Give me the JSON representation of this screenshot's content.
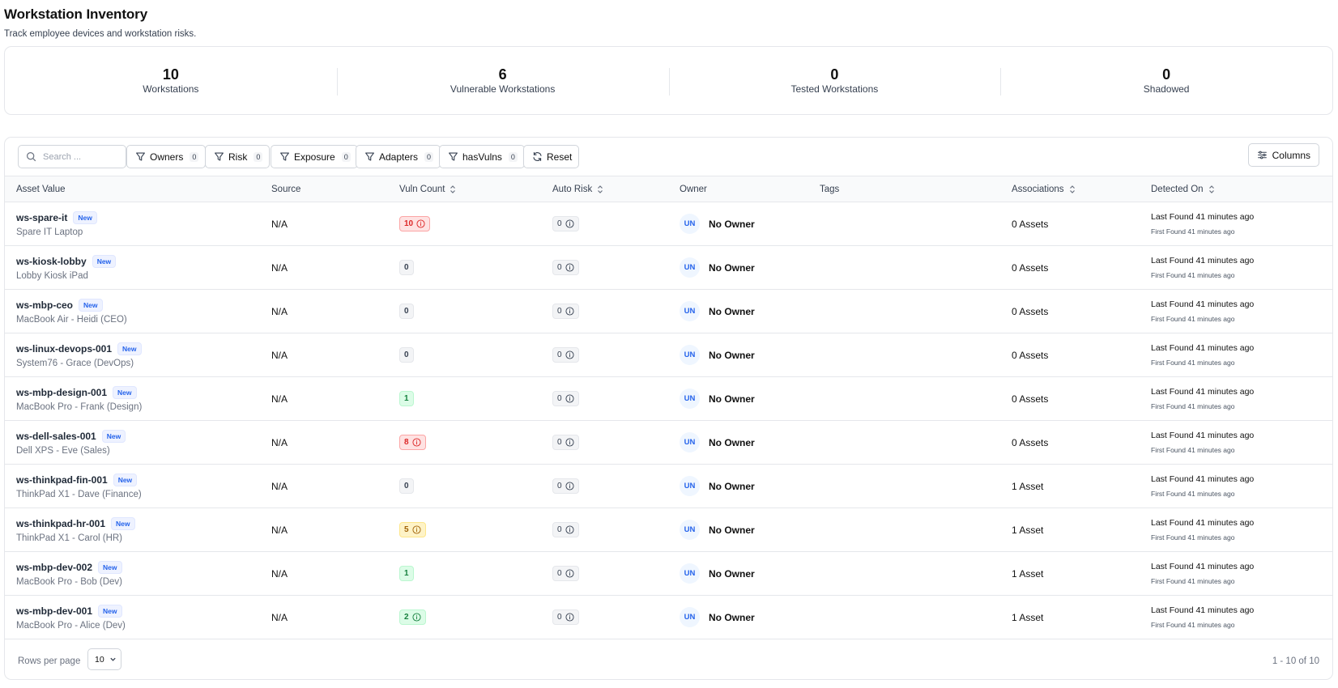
{
  "header": {
    "title": "Workstation Inventory",
    "subtitle": "Track employee devices and workstation risks."
  },
  "stats": [
    {
      "value": "10",
      "label": "Workstations"
    },
    {
      "value": "6",
      "label": "Vulnerable Workstations"
    },
    {
      "value": "0",
      "label": "Tested Workstations"
    },
    {
      "value": "0",
      "label": "Shadowed"
    }
  ],
  "toolbar": {
    "search_placeholder": "Search ...",
    "filters": [
      {
        "label": "Owners",
        "count": "0"
      },
      {
        "label": "Risk",
        "count": "0"
      },
      {
        "label": "Exposure",
        "count": "0"
      },
      {
        "label": "Adapters",
        "count": "0"
      },
      {
        "label": "hasVulns",
        "count": "0"
      }
    ],
    "reset_label": "Reset",
    "columns_label": "Columns"
  },
  "table": {
    "columns": {
      "asset_value": "Asset Value",
      "source": "Source",
      "vuln_count": "Vuln Count",
      "auto_risk": "Auto Risk",
      "owner": "Owner",
      "tags": "Tags",
      "associations": "Associations",
      "detected_on": "Detected On"
    },
    "rows": [
      {
        "name": "ws-spare-it",
        "badge": "New",
        "desc": "Spare IT Laptop",
        "source": "N/A",
        "vuln": "10",
        "vuln_level": "red",
        "vuln_info": true,
        "risk": "0",
        "owner_initials": "UN",
        "owner": "No Owner",
        "assoc": "0 Assets",
        "last": "Last Found 41 minutes ago",
        "first": "First Found 41 minutes ago"
      },
      {
        "name": "ws-kiosk-lobby",
        "badge": "New",
        "desc": "Lobby Kiosk iPad",
        "source": "N/A",
        "vuln": "0",
        "vuln_level": "gray",
        "vuln_info": false,
        "risk": "0",
        "owner_initials": "UN",
        "owner": "No Owner",
        "assoc": "0 Assets",
        "last": "Last Found 41 minutes ago",
        "first": "First Found 41 minutes ago"
      },
      {
        "name": "ws-mbp-ceo",
        "badge": "New",
        "desc": "MacBook Air - Heidi (CEO)",
        "source": "N/A",
        "vuln": "0",
        "vuln_level": "gray",
        "vuln_info": false,
        "risk": "0",
        "owner_initials": "UN",
        "owner": "No Owner",
        "assoc": "0 Assets",
        "last": "Last Found 41 minutes ago",
        "first": "First Found 41 minutes ago"
      },
      {
        "name": "ws-linux-devops-001",
        "badge": "New",
        "desc": "System76 - Grace (DevOps)",
        "source": "N/A",
        "vuln": "0",
        "vuln_level": "gray",
        "vuln_info": false,
        "risk": "0",
        "owner_initials": "UN",
        "owner": "No Owner",
        "assoc": "0 Assets",
        "last": "Last Found 41 minutes ago",
        "first": "First Found 41 minutes ago"
      },
      {
        "name": "ws-mbp-design-001",
        "badge": "New",
        "desc": "MacBook Pro - Frank (Design)",
        "source": "N/A",
        "vuln": "1",
        "vuln_level": "green",
        "vuln_info": false,
        "risk": "0",
        "owner_initials": "UN",
        "owner": "No Owner",
        "assoc": "0 Assets",
        "last": "Last Found 41 minutes ago",
        "first": "First Found 41 minutes ago"
      },
      {
        "name": "ws-dell-sales-001",
        "badge": "New",
        "desc": "Dell XPS - Eve (Sales)",
        "source": "N/A",
        "vuln": "8",
        "vuln_level": "red",
        "vuln_info": true,
        "risk": "0",
        "owner_initials": "UN",
        "owner": "No Owner",
        "assoc": "0 Assets",
        "last": "Last Found 41 minutes ago",
        "first": "First Found 41 minutes ago"
      },
      {
        "name": "ws-thinkpad-fin-001",
        "badge": "New",
        "desc": "ThinkPad X1 - Dave (Finance)",
        "source": "N/A",
        "vuln": "0",
        "vuln_level": "gray",
        "vuln_info": false,
        "risk": "0",
        "owner_initials": "UN",
        "owner": "No Owner",
        "assoc": "1 Asset",
        "last": "Last Found 41 minutes ago",
        "first": "First Found 41 minutes ago"
      },
      {
        "name": "ws-thinkpad-hr-001",
        "badge": "New",
        "desc": "ThinkPad X1 - Carol (HR)",
        "source": "N/A",
        "vuln": "5",
        "vuln_level": "yellow",
        "vuln_info": true,
        "risk": "0",
        "owner_initials": "UN",
        "owner": "No Owner",
        "assoc": "1 Asset",
        "last": "Last Found 41 minutes ago",
        "first": "First Found 41 minutes ago"
      },
      {
        "name": "ws-mbp-dev-002",
        "badge": "New",
        "desc": "MacBook Pro - Bob (Dev)",
        "source": "N/A",
        "vuln": "1",
        "vuln_level": "green",
        "vuln_info": false,
        "risk": "0",
        "owner_initials": "UN",
        "owner": "No Owner",
        "assoc": "1 Asset",
        "last": "Last Found 41 minutes ago",
        "first": "First Found 41 minutes ago"
      },
      {
        "name": "ws-mbp-dev-001",
        "badge": "New",
        "desc": "MacBook Pro - Alice (Dev)",
        "source": "N/A",
        "vuln": "2",
        "vuln_level": "green",
        "vuln_info": true,
        "risk": "0",
        "owner_initials": "UN",
        "owner": "No Owner",
        "assoc": "1 Asset",
        "last": "Last Found 41 minutes ago",
        "first": "First Found 41 minutes ago"
      }
    ]
  },
  "footer": {
    "rows_per_page_label": "Rows per page",
    "rows_per_page_value": "10",
    "page_info": "1 - 10 of 10"
  }
}
